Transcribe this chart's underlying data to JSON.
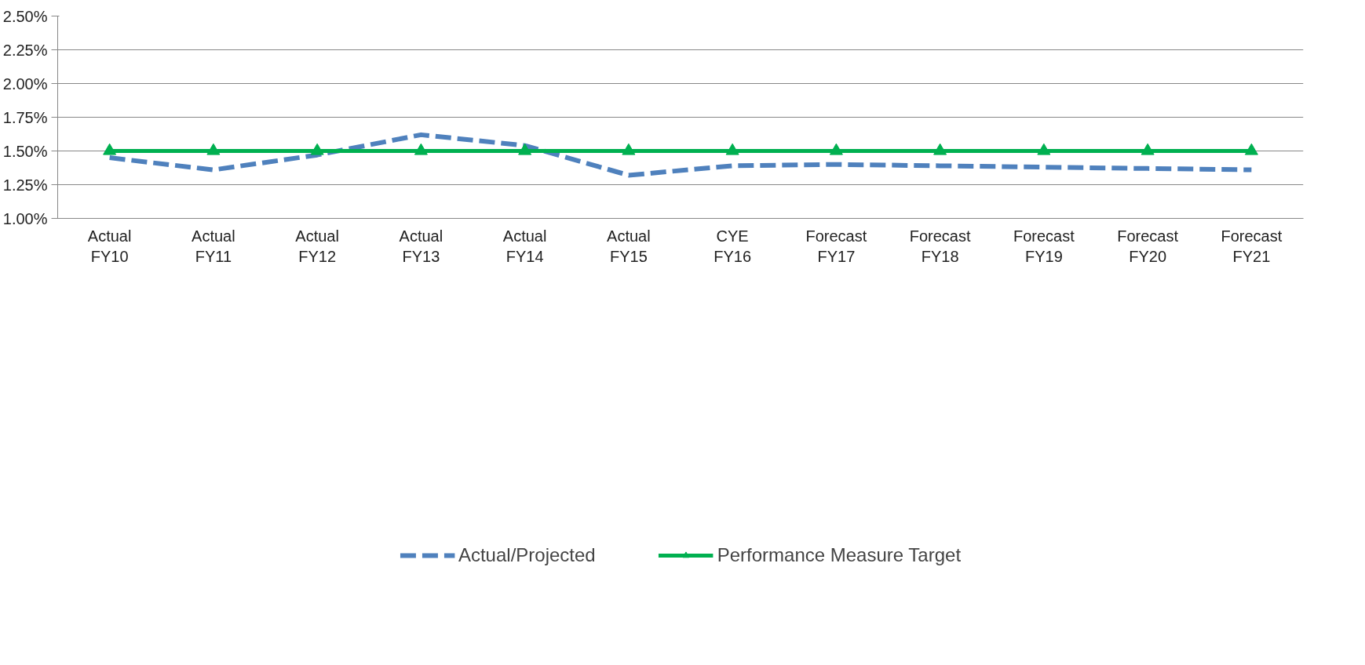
{
  "chart_data": {
    "type": "line",
    "categories": [
      "Actual\nFY10",
      "Actual\nFY11",
      "Actual\nFY12",
      "Actual\nFY13",
      "Actual\nFY14",
      "Actual\nFY15",
      "CYE\nFY16",
      "Forecast\nFY17",
      "Forecast\nFY18",
      "Forecast\nFY19",
      "Forecast\nFY20",
      "Forecast\nFY21"
    ],
    "series": [
      {
        "name": "Actual/Projected",
        "color": "#4f81bd",
        "line_style": "dashed",
        "marker": "none",
        "values": [
          1.45,
          1.36,
          1.47,
          1.62,
          1.54,
          1.32,
          1.39,
          1.4,
          1.39,
          1.38,
          1.37,
          1.36
        ]
      },
      {
        "name": "Performance Measure Target",
        "color": "#00b050",
        "line_style": "solid",
        "marker": "triangle",
        "values": [
          1.5,
          1.5,
          1.5,
          1.5,
          1.5,
          1.5,
          1.5,
          1.5,
          1.5,
          1.5,
          1.5,
          1.5
        ]
      }
    ],
    "ylim": [
      1.0,
      2.5
    ],
    "yticks": [
      {
        "value": 1.0,
        "label": "1.00%"
      },
      {
        "value": 1.25,
        "label": "1.25%"
      },
      {
        "value": 1.5,
        "label": "1.50%"
      },
      {
        "value": 1.75,
        "label": "1.75%"
      },
      {
        "value": 2.0,
        "label": "2.00%"
      },
      {
        "value": 2.25,
        "label": "2.25%"
      },
      {
        "value": 2.5,
        "label": "2.50%"
      }
    ],
    "grid": "y",
    "legend": "bottom"
  }
}
